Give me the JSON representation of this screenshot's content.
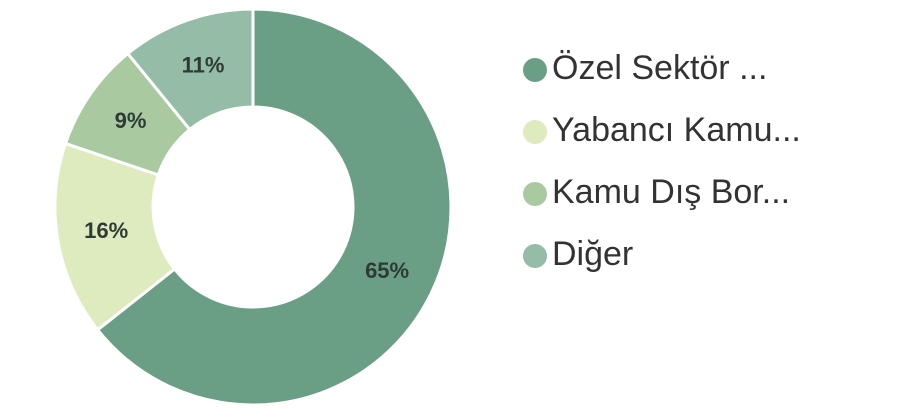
{
  "chart_data": {
    "type": "donut",
    "categories": [
      "Özel Sektör ...",
      "Yabancı Kamu...",
      "Kamu Dış Bor...",
      "Diğer"
    ],
    "values": [
      65,
      16,
      9,
      11
    ],
    "value_labels": [
      "65%",
      "16%",
      "9%",
      "11%"
    ],
    "colors": [
      "#6a9f86",
      "#ddebbf",
      "#a9caa1",
      "#94bca7"
    ],
    "legend": "right"
  }
}
